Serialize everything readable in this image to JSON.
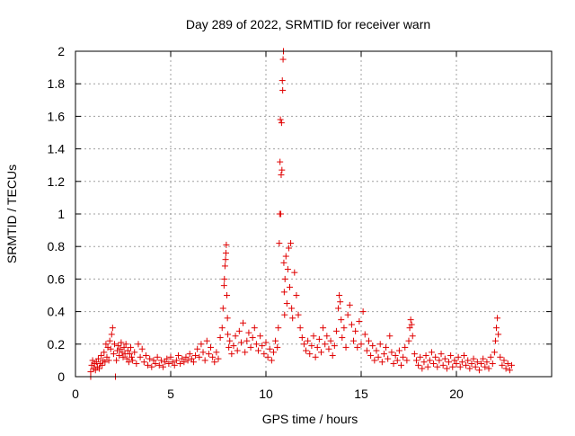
{
  "chart_data": {
    "type": "scatter",
    "title": "Day 289 of 2022, SRMTID for receiver warn",
    "xlabel": "GPS time / hours",
    "ylabel": "SRMTID / TECUs",
    "xlim": [
      0,
      25
    ],
    "ylim": [
      0,
      2
    ],
    "xticks": [
      0,
      5,
      10,
      15,
      20
    ],
    "xtick_labels": [
      "0",
      "5",
      "10",
      "15",
      "20"
    ],
    "yticks": [
      0,
      0.2,
      0.4,
      0.6,
      0.8,
      1,
      1.2,
      1.4,
      1.6,
      1.8,
      2
    ],
    "ytick_labels": [
      "0",
      "0.2",
      "0.4",
      "0.6",
      "0.8",
      "1",
      "1.2",
      "1.4",
      "1.6",
      "1.8",
      "2"
    ],
    "grid": true,
    "marker": "+",
    "color": "#e00000",
    "series": [
      {
        "name": "",
        "points": [
          [
            0.8,
            0.0
          ],
          [
            0.8,
            0.03
          ],
          [
            0.85,
            0.07
          ],
          [
            0.9,
            0.1
          ],
          [
            0.95,
            0.05
          ],
          [
            1.0,
            0.08
          ],
          [
            1.05,
            0.04
          ],
          [
            1.1,
            0.09
          ],
          [
            1.15,
            0.06
          ],
          [
            1.2,
            0.11
          ],
          [
            1.25,
            0.05
          ],
          [
            1.3,
            0.08
          ],
          [
            1.35,
            0.13
          ],
          [
            1.4,
            0.07
          ],
          [
            1.45,
            0.1
          ],
          [
            1.5,
            0.15
          ],
          [
            1.55,
            0.09
          ],
          [
            1.6,
            0.2
          ],
          [
            1.65,
            0.12
          ],
          [
            1.7,
            0.18
          ],
          [
            1.75,
            0.1
          ],
          [
            1.8,
            0.22
          ],
          [
            1.85,
            0.17
          ],
          [
            1.9,
            0.26
          ],
          [
            1.95,
            0.3
          ],
          [
            2.0,
            0.14
          ],
          [
            2.05,
            0.2
          ],
          [
            2.1,
            0.0
          ],
          [
            2.15,
            0.1
          ],
          [
            2.2,
            0.16
          ],
          [
            2.25,
            0.19
          ],
          [
            2.3,
            0.13
          ],
          [
            2.35,
            0.17
          ],
          [
            2.4,
            0.21
          ],
          [
            2.45,
            0.15
          ],
          [
            2.5,
            0.12
          ],
          [
            2.55,
            0.18
          ],
          [
            2.6,
            0.14
          ],
          [
            2.65,
            0.2
          ],
          [
            2.7,
            0.11
          ],
          [
            2.75,
            0.16
          ],
          [
            2.8,
            0.09
          ],
          [
            2.85,
            0.14
          ],
          [
            2.9,
            0.18
          ],
          [
            2.95,
            0.12
          ],
          [
            3.0,
            0.1
          ],
          [
            3.1,
            0.15
          ],
          [
            3.2,
            0.08
          ],
          [
            3.3,
            0.2
          ],
          [
            3.4,
            0.12
          ],
          [
            3.5,
            0.17
          ],
          [
            3.6,
            0.09
          ],
          [
            3.7,
            0.13
          ],
          [
            3.8,
            0.07
          ],
          [
            3.9,
            0.11
          ],
          [
            4.0,
            0.06
          ],
          [
            4.1,
            0.1
          ],
          [
            4.2,
            0.08
          ],
          [
            4.3,
            0.12
          ],
          [
            4.4,
            0.07
          ],
          [
            4.5,
            0.1
          ],
          [
            4.6,
            0.06
          ],
          [
            4.7,
            0.09
          ],
          [
            4.8,
            0.11
          ],
          [
            4.9,
            0.08
          ],
          [
            5.0,
            0.12
          ],
          [
            5.1,
            0.09
          ],
          [
            5.2,
            0.07
          ],
          [
            5.3,
            0.1
          ],
          [
            5.4,
            0.13
          ],
          [
            5.5,
            0.08
          ],
          [
            5.6,
            0.11
          ],
          [
            5.7,
            0.09
          ],
          [
            5.8,
            0.12
          ],
          [
            5.9,
            0.1
          ],
          [
            6.0,
            0.14
          ],
          [
            6.1,
            0.11
          ],
          [
            6.2,
            0.09
          ],
          [
            6.3,
            0.13
          ],
          [
            6.4,
            0.17
          ],
          [
            6.5,
            0.12
          ],
          [
            6.6,
            0.2
          ],
          [
            6.7,
            0.15
          ],
          [
            6.8,
            0.1
          ],
          [
            6.9,
            0.22
          ],
          [
            7.0,
            0.14
          ],
          [
            7.1,
            0.18
          ],
          [
            7.2,
            0.12
          ],
          [
            7.3,
            0.09
          ],
          [
            7.4,
            0.15
          ],
          [
            7.5,
            0.11
          ],
          [
            7.6,
            0.24
          ],
          [
            7.7,
            0.3
          ],
          [
            7.75,
            0.42
          ],
          [
            7.8,
            0.56
          ],
          [
            7.82,
            0.6
          ],
          [
            7.85,
            0.68
          ],
          [
            7.88,
            0.72
          ],
          [
            7.9,
            0.76
          ],
          [
            7.92,
            0.81
          ],
          [
            7.95,
            0.5
          ],
          [
            7.98,
            0.36
          ],
          [
            8.0,
            0.26
          ],
          [
            8.05,
            0.18
          ],
          [
            8.1,
            0.22
          ],
          [
            8.2,
            0.14
          ],
          [
            8.3,
            0.19
          ],
          [
            8.4,
            0.25
          ],
          [
            8.5,
            0.16
          ],
          [
            8.6,
            0.28
          ],
          [
            8.7,
            0.21
          ],
          [
            8.8,
            0.33
          ],
          [
            8.9,
            0.15
          ],
          [
            9.0,
            0.22
          ],
          [
            9.1,
            0.27
          ],
          [
            9.2,
            0.18
          ],
          [
            9.3,
            0.24
          ],
          [
            9.4,
            0.3
          ],
          [
            9.5,
            0.2
          ],
          [
            9.6,
            0.16
          ],
          [
            9.7,
            0.25
          ],
          [
            9.8,
            0.19
          ],
          [
            9.9,
            0.14
          ],
          [
            10.0,
            0.21
          ],
          [
            10.1,
            0.12
          ],
          [
            10.2,
            0.17
          ],
          [
            10.3,
            0.1
          ],
          [
            10.4,
            0.15
          ],
          [
            10.5,
            0.22
          ],
          [
            10.6,
            0.18
          ],
          [
            10.65,
            0.3
          ],
          [
            10.7,
            0.82
          ],
          [
            10.72,
            1.0
          ],
          [
            10.74,
            1.32
          ],
          [
            10.76,
            1.58
          ],
          [
            10.78,
            1.0
          ],
          [
            10.8,
            1.24
          ],
          [
            10.82,
            1.56
          ],
          [
            10.84,
            1.27
          ],
          [
            10.86,
            1.82
          ],
          [
            10.88,
            1.76
          ],
          [
            10.9,
            1.95
          ],
          [
            10.92,
            2.0
          ],
          [
            10.94,
            0.7
          ],
          [
            10.96,
            0.52
          ],
          [
            10.98,
            0.38
          ],
          [
            11.0,
            0.6
          ],
          [
            11.05,
            0.74
          ],
          [
            11.1,
            0.45
          ],
          [
            11.15,
            0.66
          ],
          [
            11.2,
            0.79
          ],
          [
            11.25,
            0.55
          ],
          [
            11.3,
            0.82
          ],
          [
            11.35,
            0.42
          ],
          [
            11.4,
            0.36
          ],
          [
            11.5,
            0.64
          ],
          [
            11.6,
            0.5
          ],
          [
            11.7,
            0.38
          ],
          [
            11.8,
            0.3
          ],
          [
            11.9,
            0.24
          ],
          [
            12.0,
            0.2
          ],
          [
            12.1,
            0.16
          ],
          [
            12.2,
            0.22
          ],
          [
            12.3,
            0.14
          ],
          [
            12.4,
            0.19
          ],
          [
            12.5,
            0.25
          ],
          [
            12.6,
            0.12
          ],
          [
            12.7,
            0.18
          ],
          [
            12.8,
            0.23
          ],
          [
            12.9,
            0.15
          ],
          [
            13.0,
            0.3
          ],
          [
            13.1,
            0.2
          ],
          [
            13.2,
            0.25
          ],
          [
            13.3,
            0.17
          ],
          [
            13.4,
            0.22
          ],
          [
            13.5,
            0.13
          ],
          [
            13.6,
            0.19
          ],
          [
            13.7,
            0.28
          ],
          [
            13.8,
            0.42
          ],
          [
            13.85,
            0.5
          ],
          [
            13.9,
            0.46
          ],
          [
            13.95,
            0.35
          ],
          [
            14.0,
            0.24
          ],
          [
            14.1,
            0.3
          ],
          [
            14.2,
            0.18
          ],
          [
            14.3,
            0.38
          ],
          [
            14.4,
            0.44
          ],
          [
            14.5,
            0.32
          ],
          [
            14.6,
            0.22
          ],
          [
            14.7,
            0.28
          ],
          [
            14.8,
            0.18
          ],
          [
            14.9,
            0.34
          ],
          [
            15.0,
            0.2
          ],
          [
            15.1,
            0.4
          ],
          [
            15.2,
            0.26
          ],
          [
            15.3,
            0.16
          ],
          [
            15.4,
            0.22
          ],
          [
            15.5,
            0.13
          ],
          [
            15.6,
            0.19
          ],
          [
            15.7,
            0.1
          ],
          [
            15.8,
            0.16
          ],
          [
            15.9,
            0.12
          ],
          [
            16.0,
            0.2
          ],
          [
            16.1,
            0.09
          ],
          [
            16.2,
            0.14
          ],
          [
            16.3,
            0.18
          ],
          [
            16.4,
            0.11
          ],
          [
            16.5,
            0.25
          ],
          [
            16.6,
            0.15
          ],
          [
            16.7,
            0.08
          ],
          [
            16.8,
            0.13
          ],
          [
            16.9,
            0.1
          ],
          [
            17.0,
            0.16
          ],
          [
            17.1,
            0.07
          ],
          [
            17.2,
            0.12
          ],
          [
            17.3,
            0.18
          ],
          [
            17.4,
            0.1
          ],
          [
            17.5,
            0.22
          ],
          [
            17.55,
            0.3
          ],
          [
            17.6,
            0.35
          ],
          [
            17.65,
            0.32
          ],
          [
            17.7,
            0.25
          ],
          [
            17.8,
            0.14
          ],
          [
            17.9,
            0.1
          ],
          [
            18.0,
            0.07
          ],
          [
            18.1,
            0.12
          ],
          [
            18.2,
            0.05
          ],
          [
            18.3,
            0.09
          ],
          [
            18.4,
            0.13
          ],
          [
            18.5,
            0.06
          ],
          [
            18.6,
            0.1
          ],
          [
            18.7,
            0.15
          ],
          [
            18.8,
            0.08
          ],
          [
            18.9,
            0.12
          ],
          [
            19.0,
            0.06
          ],
          [
            19.1,
            0.1
          ],
          [
            19.2,
            0.14
          ],
          [
            19.3,
            0.07
          ],
          [
            19.4,
            0.11
          ],
          [
            19.5,
            0.05
          ],
          [
            19.6,
            0.09
          ],
          [
            19.7,
            0.13
          ],
          [
            19.8,
            0.06
          ],
          [
            19.9,
            0.1
          ],
          [
            20.0,
            0.08
          ],
          [
            20.1,
            0.12
          ],
          [
            20.2,
            0.06
          ],
          [
            20.3,
            0.09
          ],
          [
            20.4,
            0.13
          ],
          [
            20.5,
            0.07
          ],
          [
            20.6,
            0.1
          ],
          [
            20.7,
            0.05
          ],
          [
            20.8,
            0.08
          ],
          [
            20.9,
            0.11
          ],
          [
            21.0,
            0.06
          ],
          [
            21.1,
            0.09
          ],
          [
            21.2,
            0.04
          ],
          [
            21.3,
            0.08
          ],
          [
            21.4,
            0.11
          ],
          [
            21.5,
            0.06
          ],
          [
            21.6,
            0.09
          ],
          [
            21.7,
            0.05
          ],
          [
            21.8,
            0.12
          ],
          [
            21.9,
            0.08
          ],
          [
            22.0,
            0.15
          ],
          [
            22.05,
            0.22
          ],
          [
            22.1,
            0.3
          ],
          [
            22.15,
            0.36
          ],
          [
            22.2,
            0.26
          ],
          [
            22.3,
            0.12
          ],
          [
            22.4,
            0.07
          ],
          [
            22.5,
            0.1
          ],
          [
            22.6,
            0.05
          ],
          [
            22.7,
            0.08
          ],
          [
            22.8,
            0.04
          ],
          [
            22.9,
            0.07
          ]
        ]
      }
    ]
  }
}
